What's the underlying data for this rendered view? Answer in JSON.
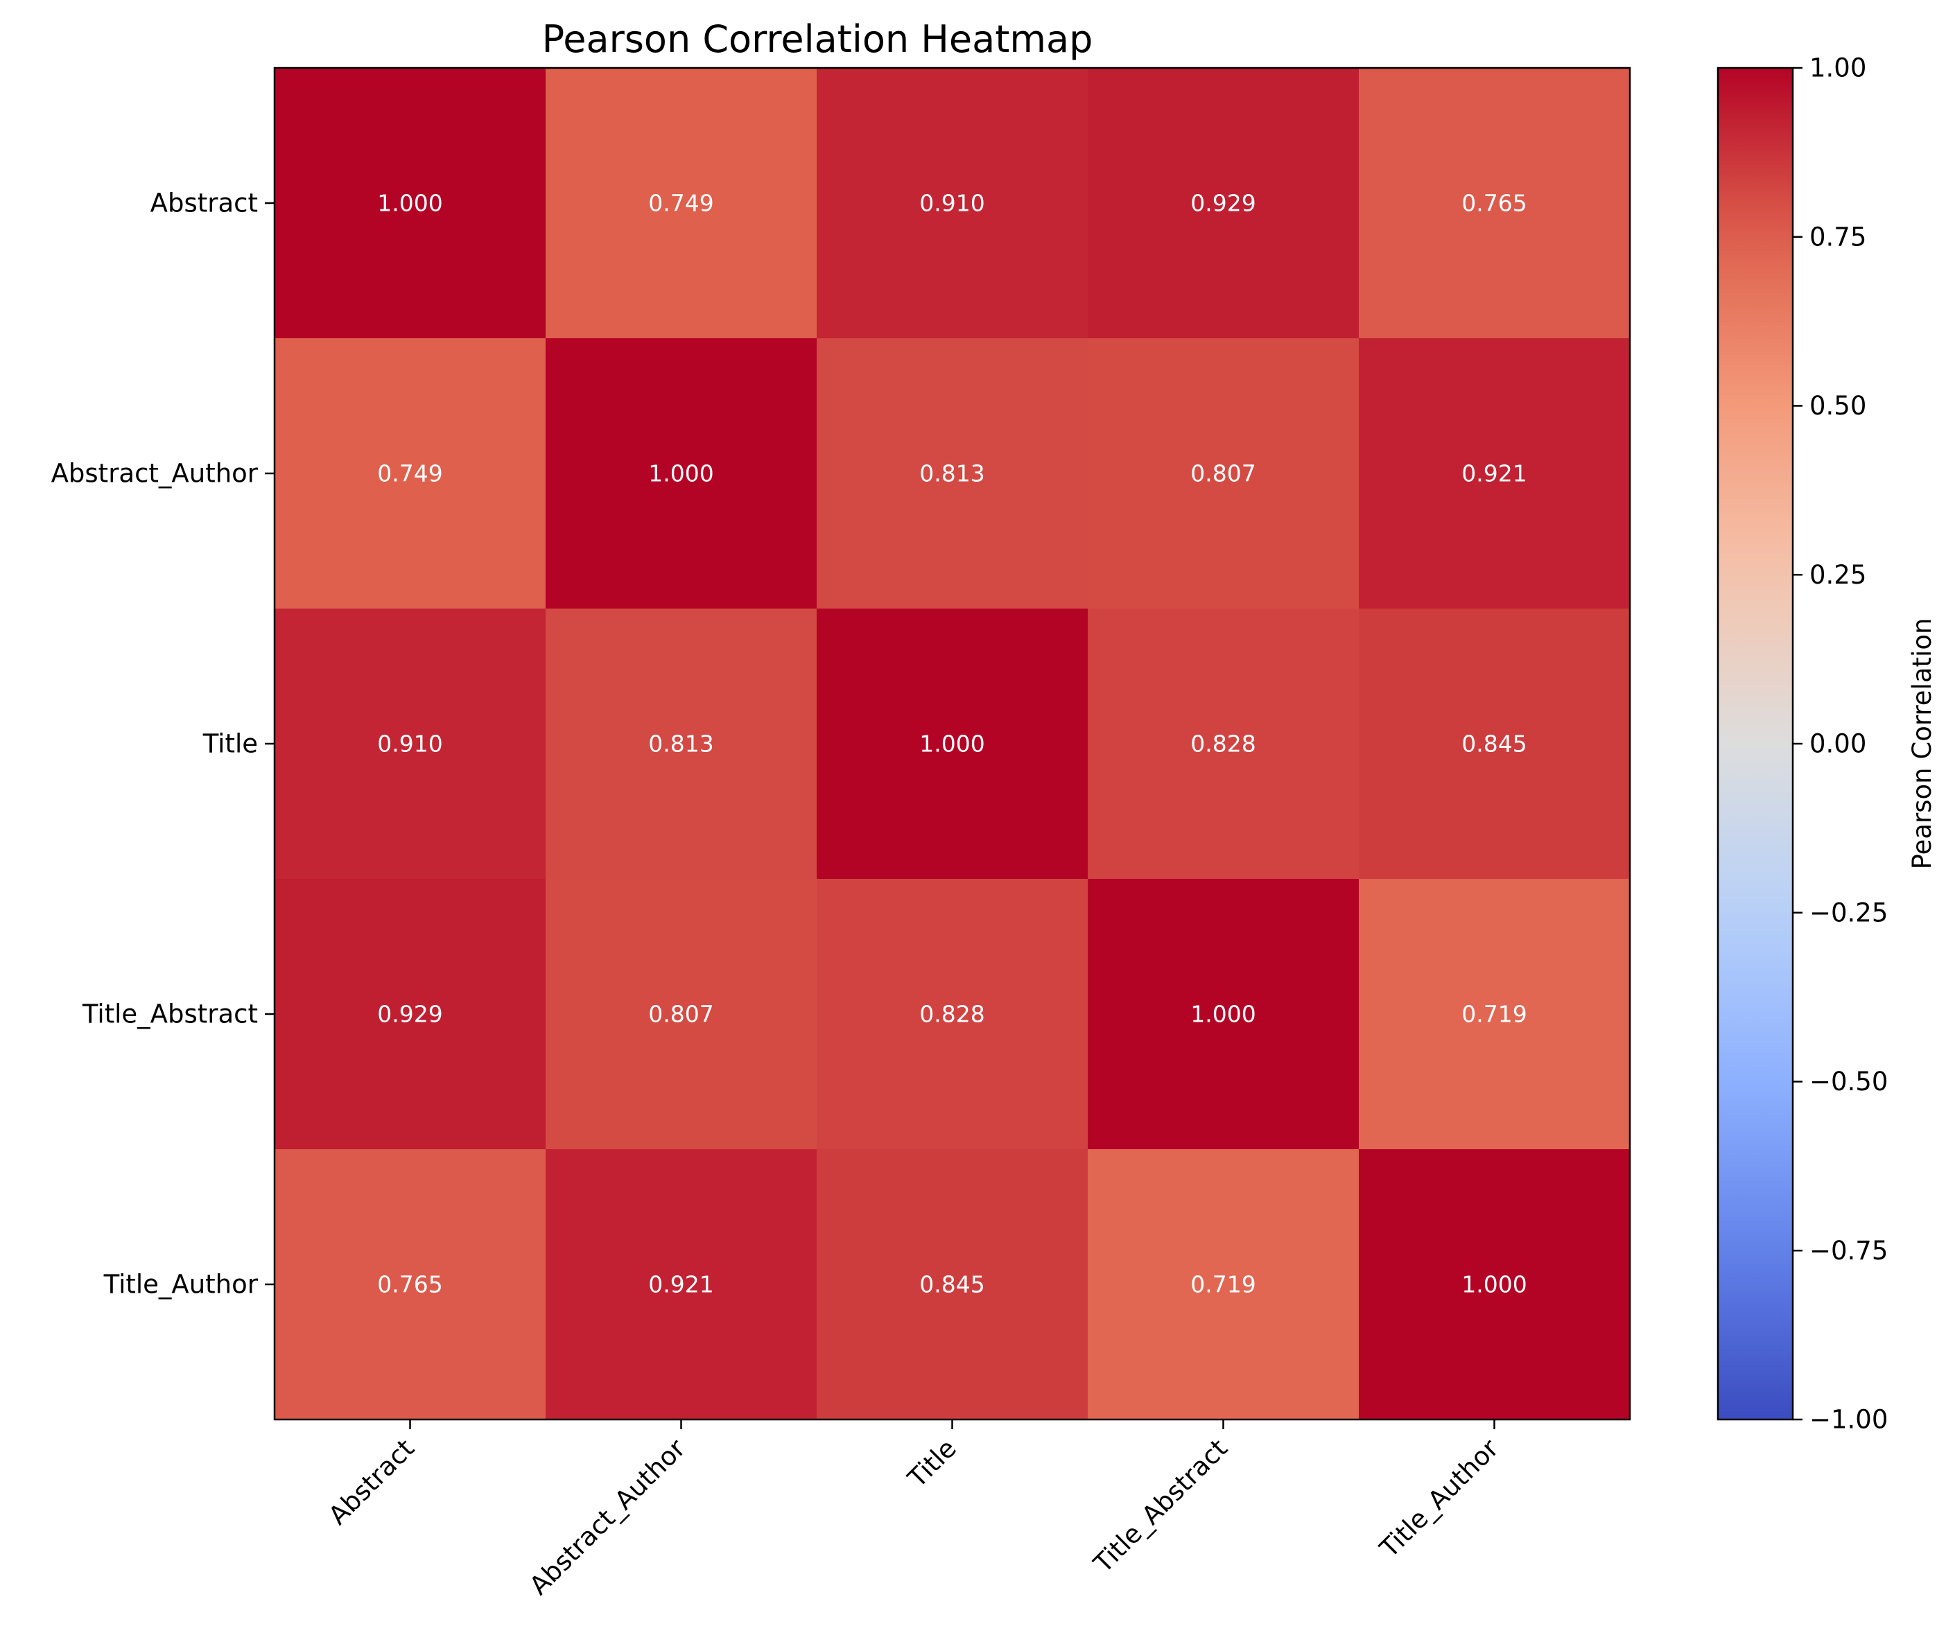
{
  "chart_data": {
    "type": "heatmap",
    "title": "Pearson Correlation Heatmap",
    "rows": [
      "Abstract",
      "Abstract_Author",
      "Title",
      "Title_Abstract",
      "Title_Author"
    ],
    "cols": [
      "Abstract",
      "Abstract_Author",
      "Title",
      "Title_Abstract",
      "Title_Author"
    ],
    "values": [
      [
        1.0,
        0.749,
        0.91,
        0.929,
        0.765
      ],
      [
        0.749,
        1.0,
        0.813,
        0.807,
        0.921
      ],
      [
        0.91,
        0.813,
        1.0,
        0.828,
        0.845
      ],
      [
        0.929,
        0.807,
        0.828,
        1.0,
        0.719
      ],
      [
        0.765,
        0.921,
        0.845,
        0.719,
        1.0
      ]
    ],
    "cell_labels": [
      [
        "1.000",
        "0.749",
        "0.910",
        "0.929",
        "0.765"
      ],
      [
        "0.749",
        "1.000",
        "0.813",
        "0.807",
        "0.921"
      ],
      [
        "0.910",
        "0.813",
        "1.000",
        "0.828",
        "0.845"
      ],
      [
        "0.929",
        "0.807",
        "0.828",
        "1.000",
        "0.719"
      ],
      [
        "0.765",
        "0.921",
        "0.845",
        "0.719",
        "1.000"
      ]
    ],
    "colormap": "coolwarm",
    "vmin": -1.0,
    "vmax": 1.0,
    "colorbar": {
      "label": "Pearson Correlation",
      "ticks": [
        -1.0,
        -0.75,
        -0.5,
        -0.25,
        0.0,
        0.25,
        0.5,
        0.75,
        1.0
      ],
      "tick_labels": [
        "−1.00",
        "−0.75",
        "−0.50",
        "−0.25",
        "0.00",
        "0.25",
        "0.50",
        "0.75",
        "1.00"
      ],
      "placement": "right"
    }
  }
}
